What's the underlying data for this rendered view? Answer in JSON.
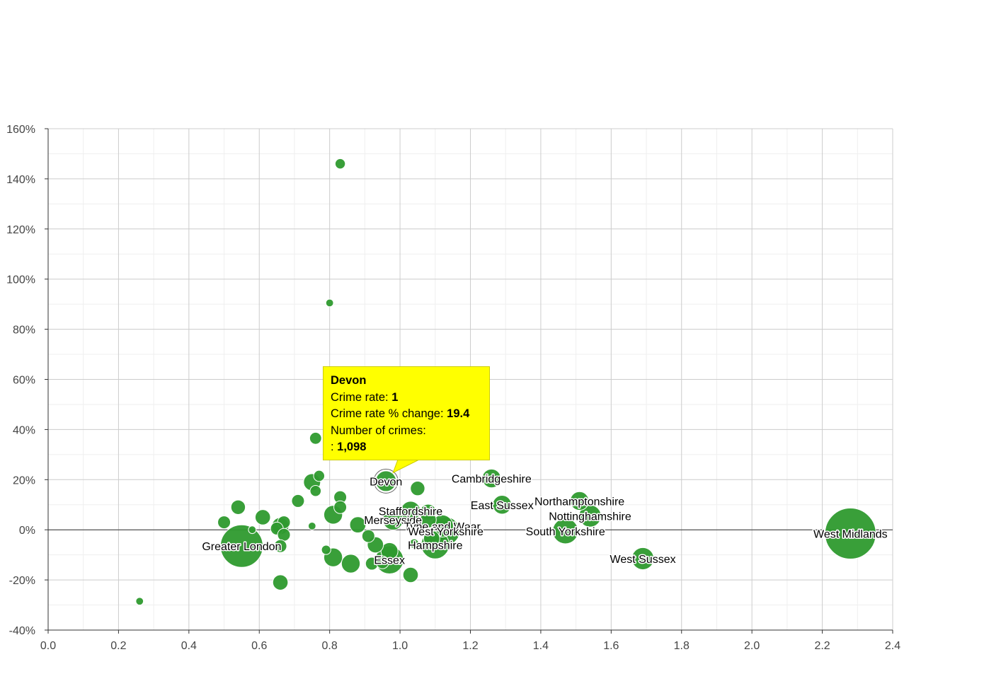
{
  "chart_data": {
    "type": "bubble",
    "x_axis": {
      "min": 0,
      "max": 2.4,
      "ticks": [
        {
          "value": 0,
          "label": "0.0"
        },
        {
          "value": 0.2,
          "label": "0.2"
        },
        {
          "value": 0.4,
          "label": "0.4"
        },
        {
          "value": 0.6,
          "label": "0.6"
        },
        {
          "value": 0.8,
          "label": "0.8"
        },
        {
          "value": 1.0,
          "label": "1.0"
        },
        {
          "value": 1.2,
          "label": "1.2"
        },
        {
          "value": 1.4,
          "label": "1.4"
        },
        {
          "value": 1.6,
          "label": "1.6"
        },
        {
          "value": 1.8,
          "label": "1.8"
        },
        {
          "value": 2.0,
          "label": "2.0"
        },
        {
          "value": 2.2,
          "label": "2.2"
        },
        {
          "value": 2.4,
          "label": "2.4"
        }
      ]
    },
    "y_axis": {
      "min": -40,
      "max": 160,
      "ticks": [
        {
          "value": -40,
          "label": "-40%"
        },
        {
          "value": -20,
          "label": "-20%"
        },
        {
          "value": 0,
          "label": "0%"
        },
        {
          "value": 20,
          "label": "20%"
        },
        {
          "value": 40,
          "label": "40%"
        },
        {
          "value": 60,
          "label": "60%"
        },
        {
          "value": 80,
          "label": "80%"
        },
        {
          "value": 100,
          "label": "100%"
        },
        {
          "value": 120,
          "label": "120%"
        },
        {
          "value": 140,
          "label": "140%"
        },
        {
          "value": 160,
          "label": "160%"
        }
      ]
    },
    "grid": true,
    "bubble_color": "#2e9a2e",
    "series": [
      {
        "name": "West Midlands",
        "x": 2.28,
        "y": -1.5,
        "size": 6.0,
        "label": "West Midlands"
      },
      {
        "name": "Greater London",
        "x": 0.55,
        "y": -6.5,
        "size": 5.0,
        "label": "Greater London"
      },
      {
        "name": "West Sussex",
        "x": 1.69,
        "y": -11.5,
        "size": 2.6,
        "label": "West Sussex"
      },
      {
        "name": "South Yorkshire",
        "x": 1.47,
        "y": -0.5,
        "size": 3.0,
        "label": "South Yorkshire"
      },
      {
        "name": "Nottinghamshire",
        "x": 1.54,
        "y": 5.5,
        "size": 2.6,
        "label": "Nottinghamshire"
      },
      {
        "name": "Northamptonshire",
        "x": 1.51,
        "y": 11.5,
        "size": 2.2,
        "label": "Northamptonshire"
      },
      {
        "name": "East Sussex",
        "x": 1.29,
        "y": 10.0,
        "size": 2.2,
        "label": "East Sussex"
      },
      {
        "name": "Cambridgeshire",
        "x": 1.26,
        "y": 20.5,
        "size": 2.2,
        "label": "Cambridgeshire"
      },
      {
        "name": "Devon",
        "x": 0.96,
        "y": 19.4,
        "size": 2.5,
        "label": "Devon"
      },
      {
        "name": "Staffordshire",
        "x": 1.03,
        "y": 7.5,
        "size": 2.3,
        "label": "Staffordshire"
      },
      {
        "name": "Merseyside",
        "x": 0.98,
        "y": 4.0,
        "size": 2.4,
        "label": "Merseyside"
      },
      {
        "name": "Tyne and Wear",
        "x": 1.12,
        "y": 1.5,
        "size": 2.6,
        "label": "Tyne and Wear"
      },
      {
        "name": "West Yorkshire",
        "x": 1.13,
        "y": -0.5,
        "size": 3.3,
        "label": "West Yorkshire"
      },
      {
        "name": "Hampshire",
        "x": 1.1,
        "y": -6.0,
        "size": 3.3,
        "label": "Hampshire"
      },
      {
        "name": "Essex",
        "x": 0.97,
        "y": -12.0,
        "size": 3.3,
        "label": "Essex"
      },
      {
        "name": "",
        "x": 0.83,
        "y": 146.0,
        "size": 1.2,
        "label": ""
      },
      {
        "name": "",
        "x": 0.8,
        "y": 90.5,
        "size": 0.9,
        "label": ""
      },
      {
        "name": "",
        "x": 0.76,
        "y": 36.5,
        "size": 1.4,
        "label": ""
      },
      {
        "name": "",
        "x": 0.77,
        "y": 21.5,
        "size": 1.3,
        "label": ""
      },
      {
        "name": "",
        "x": 0.75,
        "y": 19.0,
        "size": 2.0,
        "label": ""
      },
      {
        "name": "",
        "x": 0.76,
        "y": 15.5,
        "size": 1.3,
        "label": ""
      },
      {
        "name": "",
        "x": 1.05,
        "y": 16.5,
        "size": 1.7,
        "label": ""
      },
      {
        "name": "",
        "x": 0.83,
        "y": 13.0,
        "size": 1.5,
        "label": ""
      },
      {
        "name": "",
        "x": 0.71,
        "y": 11.5,
        "size": 1.5,
        "label": ""
      },
      {
        "name": "",
        "x": 0.54,
        "y": 9.0,
        "size": 1.7,
        "label": ""
      },
      {
        "name": "",
        "x": 0.83,
        "y": 9.0,
        "size": 1.5,
        "label": ""
      },
      {
        "name": "",
        "x": 0.81,
        "y": 6.0,
        "size": 2.2,
        "label": ""
      },
      {
        "name": "",
        "x": 0.61,
        "y": 5.0,
        "size": 1.8,
        "label": ""
      },
      {
        "name": "",
        "x": 1.08,
        "y": 7.0,
        "size": 1.9,
        "label": ""
      },
      {
        "name": "",
        "x": 0.5,
        "y": 3.0,
        "size": 1.5,
        "label": ""
      },
      {
        "name": "",
        "x": 0.67,
        "y": 3.0,
        "size": 1.5,
        "label": ""
      },
      {
        "name": "",
        "x": 0.66,
        "y": 1.5,
        "size": 2.0,
        "label": ""
      },
      {
        "name": "",
        "x": 0.75,
        "y": 1.5,
        "size": 0.9,
        "label": ""
      },
      {
        "name": "",
        "x": 0.88,
        "y": 2.0,
        "size": 1.9,
        "label": ""
      },
      {
        "name": "",
        "x": 0.58,
        "y": 0.0,
        "size": 0.9,
        "label": ""
      },
      {
        "name": "",
        "x": 0.65,
        "y": 0.5,
        "size": 1.5,
        "label": ""
      },
      {
        "name": "",
        "x": 0.67,
        "y": -2.0,
        "size": 1.5,
        "label": ""
      },
      {
        "name": "",
        "x": 1.08,
        "y": 4.0,
        "size": 1.9,
        "label": ""
      },
      {
        "name": "",
        "x": 0.91,
        "y": -2.5,
        "size": 1.5,
        "label": ""
      },
      {
        "name": "",
        "x": 1.09,
        "y": -3.5,
        "size": 1.9,
        "label": ""
      },
      {
        "name": "",
        "x": 0.93,
        "y": -6.0,
        "size": 1.9,
        "label": ""
      },
      {
        "name": "",
        "x": 1.04,
        "y": -5.5,
        "size": 1.1,
        "label": ""
      },
      {
        "name": "",
        "x": 0.66,
        "y": -6.5,
        "size": 1.5,
        "label": ""
      },
      {
        "name": "",
        "x": 0.79,
        "y": -8.0,
        "size": 1.1,
        "label": ""
      },
      {
        "name": "",
        "x": 0.97,
        "y": -8.5,
        "size": 2.0,
        "label": ""
      },
      {
        "name": "",
        "x": 0.81,
        "y": -11.0,
        "size": 2.2,
        "label": ""
      },
      {
        "name": "",
        "x": 0.86,
        "y": -13.5,
        "size": 2.2,
        "label": ""
      },
      {
        "name": "",
        "x": 0.92,
        "y": -13.5,
        "size": 1.5,
        "label": ""
      },
      {
        "name": "",
        "x": 0.95,
        "y": -13.0,
        "size": 1.5,
        "label": ""
      },
      {
        "name": "",
        "x": 1.03,
        "y": -18.0,
        "size": 1.8,
        "label": ""
      },
      {
        "name": "",
        "x": 0.66,
        "y": -21.0,
        "size": 1.8,
        "label": ""
      },
      {
        "name": "",
        "x": 0.26,
        "y": -28.5,
        "size": 0.9,
        "label": ""
      }
    ],
    "tooltip": {
      "title": "Devon",
      "line1_label": "Crime rate: ",
      "line1_value": "1",
      "line2_label": "Crime rate % change: ",
      "line2_value": "19.4",
      "line3_label": "Number of crimes:",
      "line4_label": ": ",
      "line4_value": "1,098"
    }
  }
}
